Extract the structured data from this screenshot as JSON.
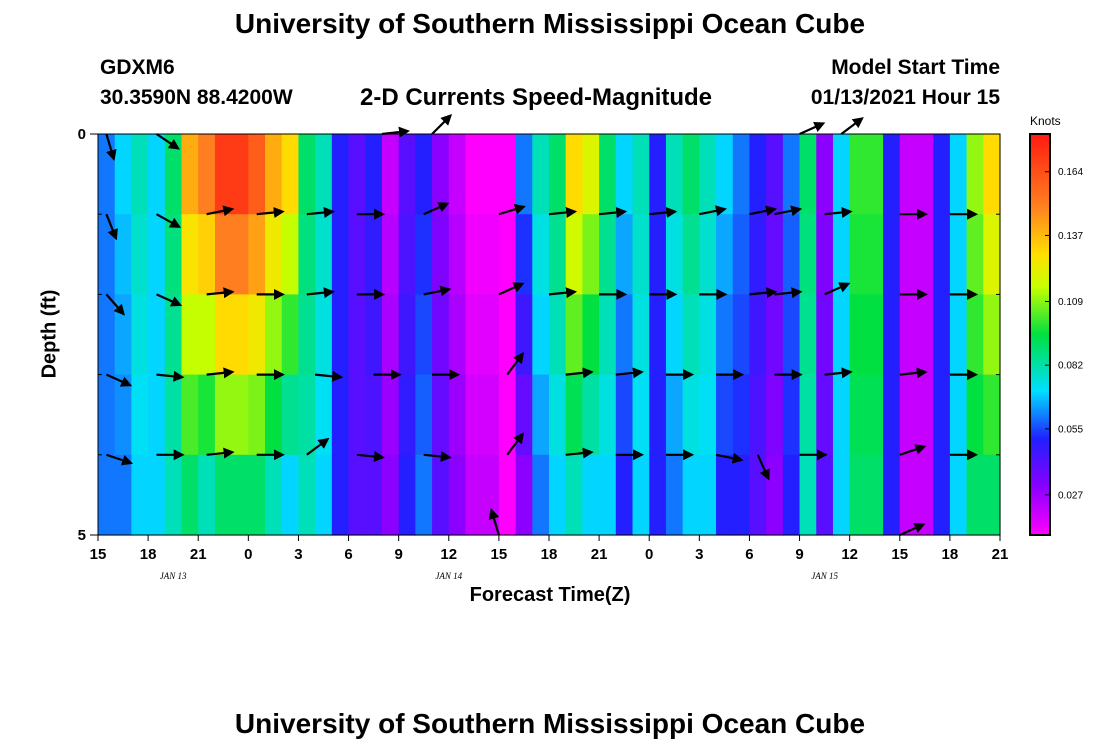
{
  "header": {
    "title": "University of Southern Mississippi Ocean Cube",
    "station": "GDXM6",
    "coords": "30.3590N 88.4200W",
    "subtitle": "2-D Currents Speed-Magnitude",
    "start_label": "Model Start Time",
    "start_value": "01/13/2021 Hour 15"
  },
  "footer": {
    "title": "University of Southern Mississippi Ocean Cube"
  },
  "chart_data": {
    "type": "heatmap",
    "title": "2-D Currents Speed-Magnitude",
    "xlabel": "Forecast Time(Z)",
    "ylabel": "Depth (ft)",
    "x_unit": "forecast hour from 01/13/2021 15Z",
    "xlim": [
      0,
      54
    ],
    "ylim": [
      5,
      0
    ],
    "x_tick_values": [
      0,
      3,
      6,
      9,
      12,
      15,
      18,
      21,
      24,
      27,
      30,
      33,
      36,
      39,
      42,
      45,
      48,
      51,
      54
    ],
    "x_tick_labels": [
      "15",
      "18",
      "21",
      "0",
      "3",
      "6",
      "9",
      "12",
      "15",
      "18",
      "21",
      "0",
      "3",
      "6",
      "9",
      "12",
      "15",
      "18",
      "21"
    ],
    "y_tick_values": [
      0,
      5
    ],
    "y_tick_labels": [
      "0",
      "5"
    ],
    "y_minor_ticks": [
      1,
      2,
      3,
      4
    ],
    "date_labels": [
      {
        "x": 4.5,
        "text": "JAN 13"
      },
      {
        "x": 21,
        "text": "JAN 14"
      },
      {
        "x": 43.5,
        "text": "JAN 15"
      }
    ],
    "depth_levels": [
      0,
      1,
      2,
      3,
      4,
      5
    ],
    "speed_units": "Knots",
    "colorbar": {
      "title": "Knots",
      "range": [
        0.01,
        0.18
      ],
      "ticks": [
        0.027,
        0.055,
        0.082,
        0.109,
        0.137,
        0.164
      ],
      "tick_labels": [
        "0.027",
        "0.055",
        "0.082",
        "0.109",
        "0.137",
        "0.164"
      ]
    },
    "speed_by_hour_top": [
      0.06,
      0.07,
      0.08,
      0.07,
      0.09,
      0.14,
      0.15,
      0.17,
      0.17,
      0.16,
      0.14,
      0.13,
      0.09,
      0.08,
      0.05,
      0.04,
      0.05,
      0.02,
      0.04,
      0.05,
      0.03,
      0.02,
      0.01,
      0.01,
      0.01,
      0.06,
      0.08,
      0.09,
      0.13,
      0.12,
      0.09,
      0.07,
      0.08,
      0.05,
      0.08,
      0.09,
      0.08,
      0.07,
      0.06,
      0.05,
      0.04,
      0.06,
      0.09,
      0.03,
      0.07,
      0.1,
      0.1,
      0.05,
      0.02,
      0.02,
      0.05,
      0.07,
      0.11,
      0.13,
      0.13
    ],
    "speed_by_hour_bottom": [
      0.06,
      0.06,
      0.07,
      0.07,
      0.08,
      0.09,
      0.08,
      0.09,
      0.09,
      0.09,
      0.08,
      0.07,
      0.08,
      0.07,
      0.05,
      0.04,
      0.04,
      0.03,
      0.05,
      0.06,
      0.04,
      0.03,
      0.02,
      0.02,
      0.01,
      0.03,
      0.06,
      0.07,
      0.08,
      0.07,
      0.07,
      0.05,
      0.07,
      0.05,
      0.06,
      0.07,
      0.07,
      0.05,
      0.05,
      0.04,
      0.03,
      0.05,
      0.08,
      0.04,
      0.07,
      0.09,
      0.09,
      0.05,
      0.02,
      0.02,
      0.05,
      0.07,
      0.09,
      0.09,
      0.08
    ],
    "vectors": [
      {
        "t": 0.5,
        "d": 0,
        "u": 0.3,
        "v": -1.0
      },
      {
        "t": 3.5,
        "d": 0,
        "u": 0.9,
        "v": -0.6
      },
      {
        "t": 17,
        "d": 0,
        "u": 0.9,
        "v": 0.1
      },
      {
        "t": 20,
        "d": 0,
        "u": 0.7,
        "v": 0.7
      },
      {
        "t": 42,
        "d": 0,
        "u": 0.9,
        "v": 0.4
      },
      {
        "t": 44.5,
        "d": 0,
        "u": 0.8,
        "v": 0.6
      },
      {
        "t": 0.5,
        "d": 1,
        "u": 0.4,
        "v": -1.0
      },
      {
        "t": 3.5,
        "d": 1,
        "u": 0.9,
        "v": -0.5
      },
      {
        "t": 6.5,
        "d": 1,
        "u": 1.0,
        "v": 0.2
      },
      {
        "t": 9.5,
        "d": 1,
        "u": 1.0,
        "v": 0.1
      },
      {
        "t": 12.5,
        "d": 1,
        "u": 1.0,
        "v": 0.1
      },
      {
        "t": 15.5,
        "d": 1,
        "u": 1.0,
        "v": 0.0
      },
      {
        "t": 19.5,
        "d": 1,
        "u": 0.9,
        "v": 0.4
      },
      {
        "t": 24,
        "d": 1,
        "u": 1.0,
        "v": 0.3
      },
      {
        "t": 27,
        "d": 1,
        "u": 1.0,
        "v": 0.1
      },
      {
        "t": 30,
        "d": 1,
        "u": 1.0,
        "v": 0.1
      },
      {
        "t": 33,
        "d": 1,
        "u": 1.0,
        "v": 0.1
      },
      {
        "t": 36,
        "d": 1,
        "u": 1.0,
        "v": 0.2
      },
      {
        "t": 39,
        "d": 1,
        "u": 1.0,
        "v": 0.2
      },
      {
        "t": 40.5,
        "d": 1,
        "u": 1.0,
        "v": 0.2
      },
      {
        "t": 43.5,
        "d": 1,
        "u": 1.0,
        "v": 0.1
      },
      {
        "t": 48,
        "d": 1,
        "u": 1.0,
        "v": 0.0
      },
      {
        "t": 51,
        "d": 1,
        "u": 1.0,
        "v": 0.0
      },
      {
        "t": 0.5,
        "d": 2,
        "u": 0.7,
        "v": -0.8
      },
      {
        "t": 3.5,
        "d": 2,
        "u": 0.9,
        "v": -0.4
      },
      {
        "t": 6.5,
        "d": 2,
        "u": 1.0,
        "v": 0.1
      },
      {
        "t": 9.5,
        "d": 2,
        "u": 1.0,
        "v": 0.0
      },
      {
        "t": 12.5,
        "d": 2,
        "u": 1.0,
        "v": 0.1
      },
      {
        "t": 15.5,
        "d": 2,
        "u": 1.0,
        "v": 0.0
      },
      {
        "t": 19.5,
        "d": 2,
        "u": 1.0,
        "v": 0.2
      },
      {
        "t": 24,
        "d": 2,
        "u": 0.9,
        "v": 0.4
      },
      {
        "t": 27,
        "d": 2,
        "u": 1.0,
        "v": 0.1
      },
      {
        "t": 30,
        "d": 2,
        "u": 1.0,
        "v": 0.0
      },
      {
        "t": 33,
        "d": 2,
        "u": 1.0,
        "v": 0.0
      },
      {
        "t": 36,
        "d": 2,
        "u": 1.0,
        "v": 0.0
      },
      {
        "t": 39,
        "d": 2,
        "u": 1.0,
        "v": 0.1
      },
      {
        "t": 40.5,
        "d": 2,
        "u": 1.0,
        "v": 0.1
      },
      {
        "t": 43.5,
        "d": 2,
        "u": 0.9,
        "v": 0.4
      },
      {
        "t": 48,
        "d": 2,
        "u": 1.0,
        "v": 0.0
      },
      {
        "t": 51,
        "d": 2,
        "u": 1.0,
        "v": 0.0
      },
      {
        "t": 0.5,
        "d": 3,
        "u": 0.9,
        "v": -0.4
      },
      {
        "t": 3.5,
        "d": 3,
        "u": 1.0,
        "v": -0.1
      },
      {
        "t": 6.5,
        "d": 3,
        "u": 1.0,
        "v": 0.1
      },
      {
        "t": 9.5,
        "d": 3,
        "u": 1.0,
        "v": 0.0
      },
      {
        "t": 13,
        "d": 3,
        "u": 1.0,
        "v": -0.1
      },
      {
        "t": 16.5,
        "d": 3,
        "u": 1.0,
        "v": 0.0
      },
      {
        "t": 20,
        "d": 3,
        "u": 1.0,
        "v": 0.0
      },
      {
        "t": 24.5,
        "d": 3,
        "u": 0.6,
        "v": 0.8
      },
      {
        "t": 28,
        "d": 3,
        "u": 1.0,
        "v": 0.1
      },
      {
        "t": 31,
        "d": 3,
        "u": 1.0,
        "v": 0.1
      },
      {
        "t": 34,
        "d": 3,
        "u": 1.0,
        "v": 0.0
      },
      {
        "t": 37,
        "d": 3,
        "u": 1.0,
        "v": 0.0
      },
      {
        "t": 40.5,
        "d": 3,
        "u": 1.0,
        "v": 0.0
      },
      {
        "t": 43.5,
        "d": 3,
        "u": 1.0,
        "v": 0.1
      },
      {
        "t": 48,
        "d": 3,
        "u": 1.0,
        "v": 0.1
      },
      {
        "t": 51,
        "d": 3,
        "u": 1.0,
        "v": 0.0
      },
      {
        "t": 0.5,
        "d": 4,
        "u": 0.9,
        "v": -0.3
      },
      {
        "t": 3.5,
        "d": 4,
        "u": 1.0,
        "v": 0.0
      },
      {
        "t": 6.5,
        "d": 4,
        "u": 1.0,
        "v": 0.1
      },
      {
        "t": 9.5,
        "d": 4,
        "u": 1.0,
        "v": 0.0
      },
      {
        "t": 12.5,
        "d": 4,
        "u": 0.8,
        "v": 0.6
      },
      {
        "t": 15.5,
        "d": 4,
        "u": 1.0,
        "v": -0.1
      },
      {
        "t": 19.5,
        "d": 4,
        "u": 1.0,
        "v": -0.1
      },
      {
        "t": 24.5,
        "d": 4,
        "u": 0.6,
        "v": 0.8
      },
      {
        "t": 28,
        "d": 4,
        "u": 1.0,
        "v": 0.1
      },
      {
        "t": 31,
        "d": 4,
        "u": 1.0,
        "v": 0.0
      },
      {
        "t": 34,
        "d": 4,
        "u": 1.0,
        "v": 0.0
      },
      {
        "t": 37,
        "d": 4,
        "u": 1.0,
        "v": -0.2
      },
      {
        "t": 39.5,
        "d": 4,
        "u": 0.4,
        "v": -0.9
      },
      {
        "t": 42,
        "d": 4,
        "u": 1.0,
        "v": 0.0
      },
      {
        "t": 48,
        "d": 4,
        "u": 0.9,
        "v": 0.3
      },
      {
        "t": 51,
        "d": 4,
        "u": 1.0,
        "v": 0.0
      },
      {
        "t": 24,
        "d": 5,
        "u": -0.3,
        "v": 1.0
      },
      {
        "t": 48,
        "d": 5,
        "u": 0.9,
        "v": 0.4
      }
    ]
  }
}
